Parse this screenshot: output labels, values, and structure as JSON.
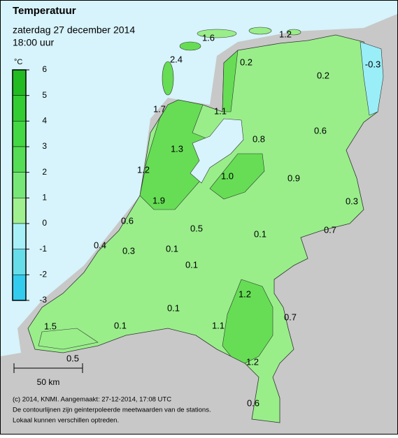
{
  "header": {
    "title": "Temperatuur",
    "date": "zaterdag 27 december 2014",
    "time": "18:00 uur"
  },
  "legend": {
    "unit": "°C",
    "ticks": [
      6,
      5,
      4,
      3,
      2,
      1,
      0,
      -1,
      -2,
      -3
    ]
  },
  "stations": [
    "1.6",
    "1.2",
    "2.4",
    "0.2",
    "0.2",
    "-0.3",
    "1.7",
    "1.1",
    "0.8",
    "0.6",
    "1.3",
    "1.2",
    "1.0",
    "0.9",
    "0.3",
    "1.9",
    "0.6",
    "0.5",
    "0.1",
    "0.7",
    "0.4",
    "0.3",
    "0.1",
    "0.1",
    "1.2",
    "0.1",
    "0.7",
    "1.1",
    "1.5",
    "0.1",
    "1.2",
    "0.5",
    "0.6"
  ],
  "scale": "50 km",
  "footer": [
    "(c) 2014, KNMI. Aangemaakt: 27-12-2014, 17:08 UTC",
    "De contourlijnen zijn geinterpoleerde meetwaarden van de stations.",
    "Lokaal kunnen verschillen optreden."
  ]
}
